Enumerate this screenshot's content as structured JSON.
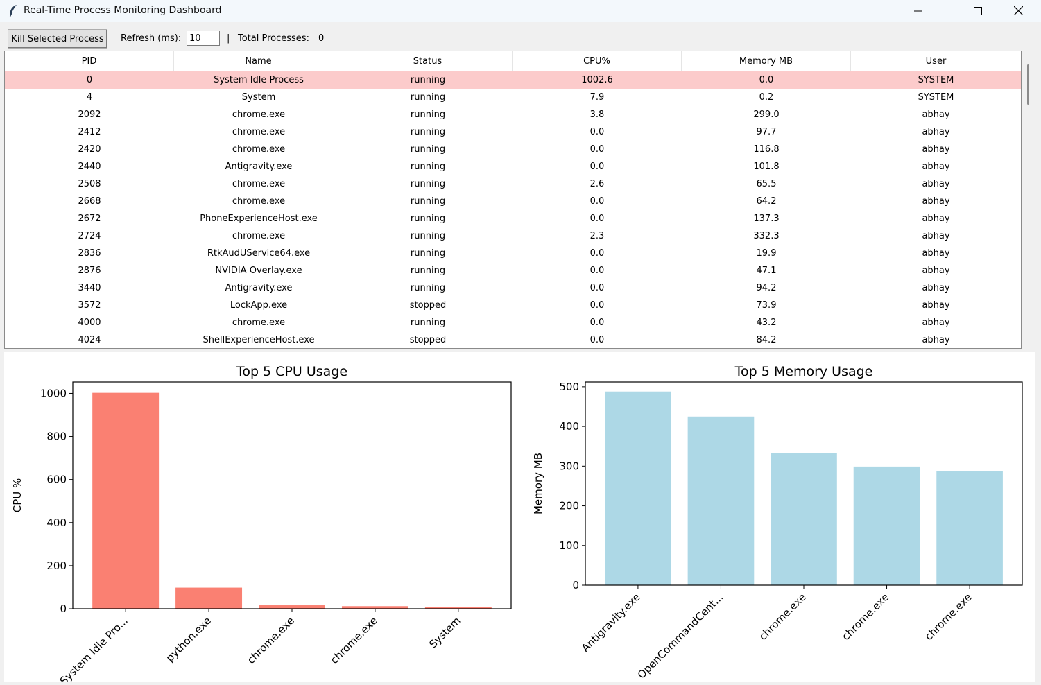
{
  "window": {
    "title": "Real-Time Process Monitoring Dashboard"
  },
  "toolbar": {
    "kill_label": "Kill Selected Process",
    "refresh_label": "Refresh (ms):",
    "refresh_value": "10",
    "separator": "|",
    "total_label": "Total Processes:",
    "total_value": "0"
  },
  "table": {
    "columns": [
      "PID",
      "Name",
      "Status",
      "CPU%",
      "Memory MB",
      "User"
    ],
    "rows": [
      [
        "0",
        "System Idle Process",
        "running",
        "1002.6",
        "0.0",
        "SYSTEM"
      ],
      [
        "4",
        "System",
        "running",
        "7.9",
        "0.2",
        "SYSTEM"
      ],
      [
        "2092",
        "chrome.exe",
        "running",
        "3.8",
        "299.0",
        "abhay"
      ],
      [
        "2412",
        "chrome.exe",
        "running",
        "0.0",
        "97.7",
        "abhay"
      ],
      [
        "2420",
        "chrome.exe",
        "running",
        "0.0",
        "116.8",
        "abhay"
      ],
      [
        "2440",
        "Antigravity.exe",
        "running",
        "0.0",
        "101.8",
        "abhay"
      ],
      [
        "2508",
        "chrome.exe",
        "running",
        "2.6",
        "65.5",
        "abhay"
      ],
      [
        "2668",
        "chrome.exe",
        "running",
        "0.0",
        "64.2",
        "abhay"
      ],
      [
        "2672",
        "PhoneExperienceHost.exe",
        "running",
        "0.0",
        "137.3",
        "abhay"
      ],
      [
        "2724",
        "chrome.exe",
        "running",
        "2.3",
        "332.3",
        "abhay"
      ],
      [
        "2836",
        "RtkAudUService64.exe",
        "running",
        "0.0",
        "19.9",
        "abhay"
      ],
      [
        "2876",
        "NVIDIA Overlay.exe",
        "running",
        "0.0",
        "47.1",
        "abhay"
      ],
      [
        "3440",
        "Antigravity.exe",
        "running",
        "0.0",
        "94.2",
        "abhay"
      ],
      [
        "3572",
        "LockApp.exe",
        "stopped",
        "0.0",
        "73.9",
        "abhay"
      ],
      [
        "4000",
        "chrome.exe",
        "running",
        "0.0",
        "43.2",
        "abhay"
      ],
      [
        "4024",
        "ShellExperienceHost.exe",
        "stopped",
        "0.0",
        "84.2",
        "abhay"
      ]
    ],
    "selected_row": 0,
    "selected_color": "#fccbcb"
  },
  "chart_data": [
    {
      "type": "bar",
      "title": "Top 5 CPU Usage",
      "ylabel": "CPU %",
      "xlabel": "",
      "categories": [
        "System Idle Pro...",
        "python.exe",
        "chrome.exe",
        "chrome.exe",
        "System"
      ],
      "values": [
        1002.6,
        98,
        16,
        12,
        7.9
      ],
      "ylim": [
        0,
        1053
      ],
      "yticks": [
        0,
        200,
        400,
        600,
        800,
        1000
      ],
      "color": "#fa8072",
      "grid": false
    },
    {
      "type": "bar",
      "title": "Top 5 Memory Usage",
      "ylabel": "Memory MB",
      "xlabel": "",
      "categories": [
        "Antigravity.exe",
        "OpenCommandCent...",
        "chrome.exe",
        "chrome.exe",
        "chrome.exe"
      ],
      "values": [
        488,
        425,
        332.3,
        299.0,
        287
      ],
      "ylim": [
        0,
        512
      ],
      "yticks": [
        0,
        100,
        200,
        300,
        400,
        500
      ],
      "color": "#add8e6",
      "grid": false
    }
  ]
}
